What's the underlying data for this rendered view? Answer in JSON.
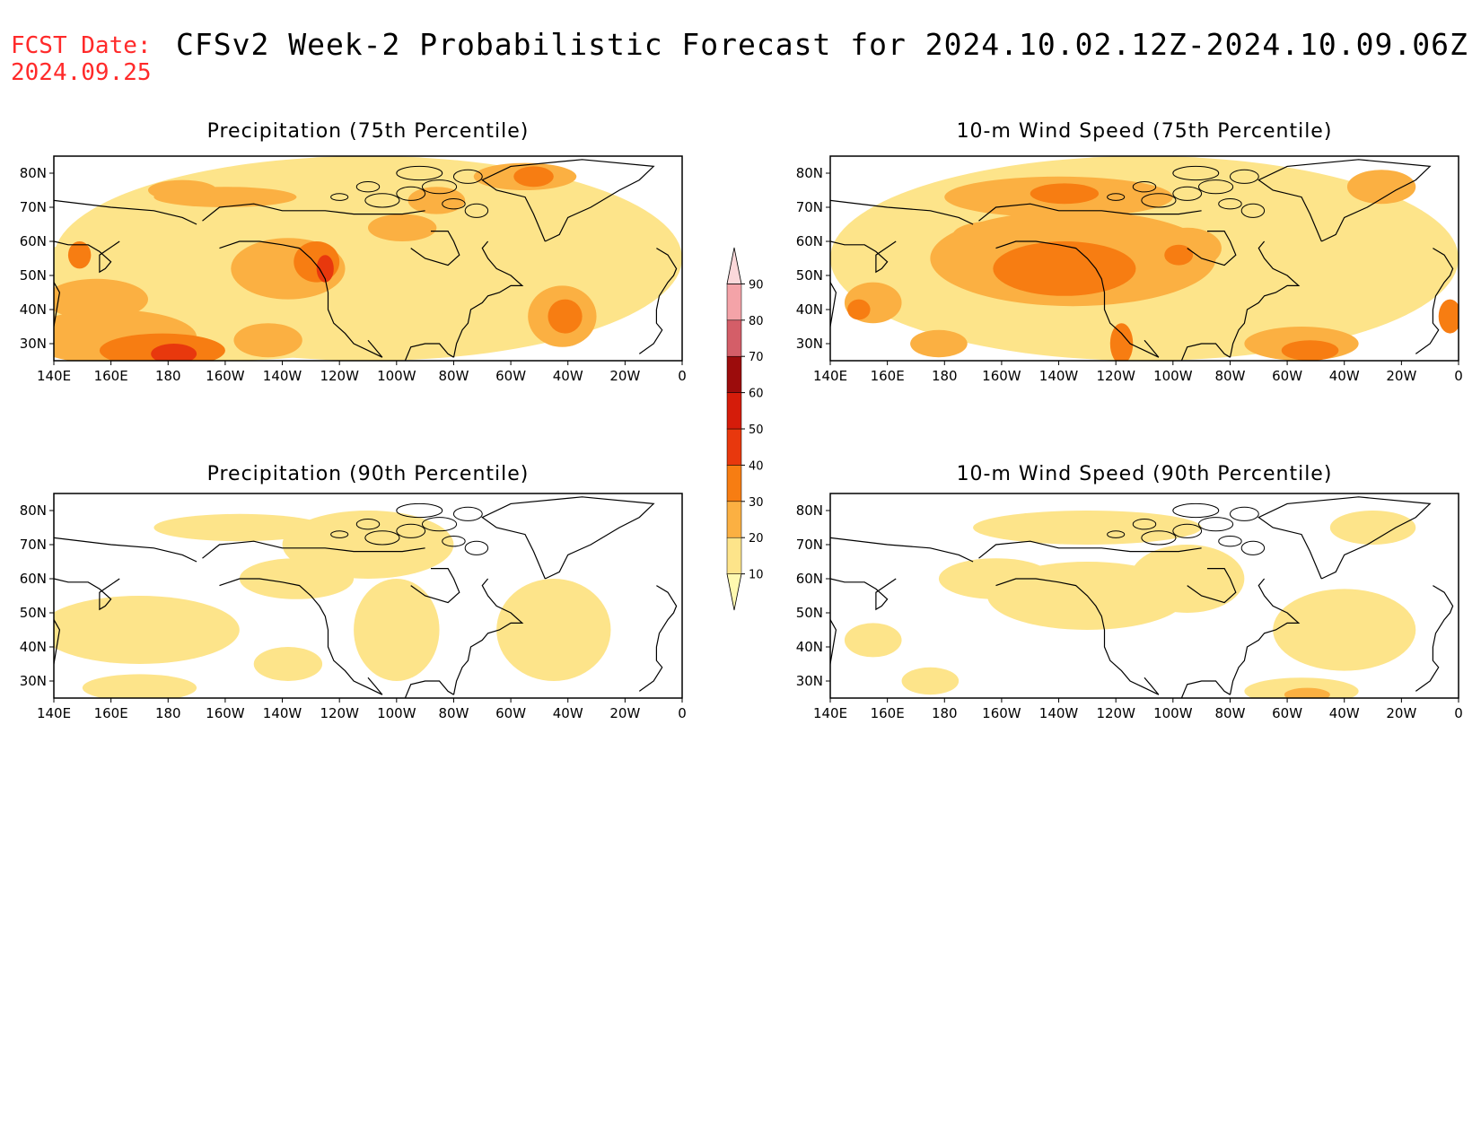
{
  "forecast_date": {
    "label": "FCST Date:",
    "value": "2024.09.25"
  },
  "title": "CFSv2 Week-2 Probabilistic Forecast for 2024.10.02.12Z-2024.10.09.06Z",
  "lon_labels": [
    "140E",
    "160E",
    "180",
    "160W",
    "140W",
    "120W",
    "100W",
    "80W",
    "60W",
    "40W",
    "20W",
    "0"
  ],
  "lat_labels": [
    "80N",
    "70N",
    "60N",
    "50N",
    "40N",
    "30N"
  ],
  "panels": [
    {
      "id": "precip75",
      "title": "Precipitation (75th Percentile)"
    },
    {
      "id": "wind75",
      "title": "10-m Wind Speed (75th Percentile)"
    },
    {
      "id": "precip90",
      "title": "Precipitation (90th Percentile)"
    },
    {
      "id": "wind90",
      "title": "10-m Wind Speed (90th Percentile)"
    }
  ],
  "colorbar": {
    "levels": [
      "10",
      "20",
      "30",
      "40",
      "50",
      "60",
      "70",
      "80",
      "90"
    ],
    "colors": [
      "#fff9b0",
      "#fde48a",
      "#fbb042",
      "#f77d12",
      "#e8380d",
      "#d51c0a",
      "#9c0c0c",
      "#d45e68",
      "#f4a3a8",
      "#fbd8da"
    ]
  },
  "map_domain": {
    "lon_range": [
      "140E",
      "0"
    ],
    "lat_range": [
      "25N",
      "85N"
    ]
  }
}
